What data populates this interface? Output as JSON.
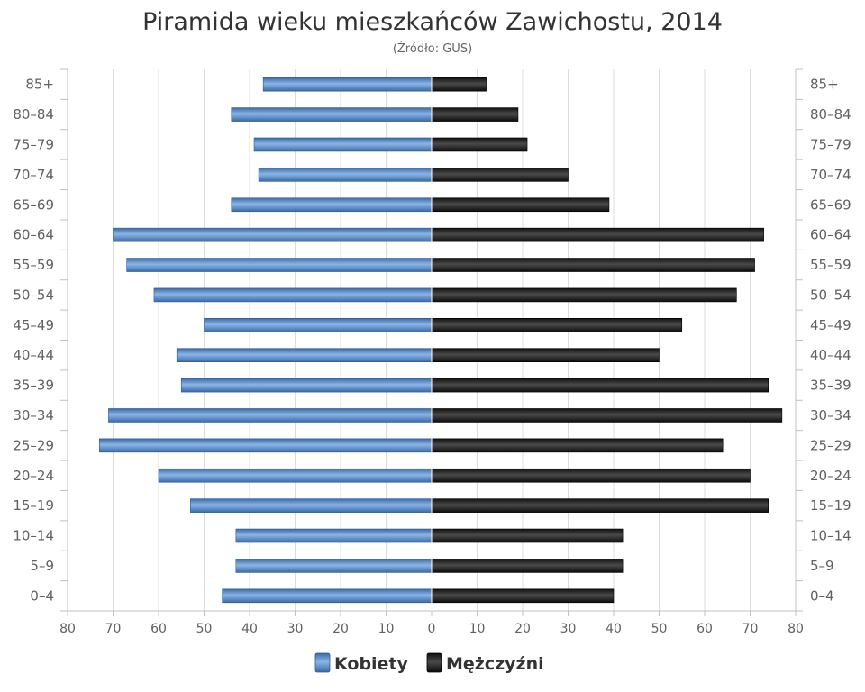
{
  "chart_data": {
    "type": "bar",
    "orientation": "horizontal-pyramid",
    "title": "Piramida wieku mieszkańców Zawichostu, 2014",
    "subtitle": "(Źródło: GUS)",
    "categories": [
      "85+",
      "80–84",
      "75–79",
      "70–74",
      "65–69",
      "60–64",
      "55–59",
      "50–54",
      "45–49",
      "40–44",
      "35–39",
      "30–34",
      "25–29",
      "20–24",
      "15–19",
      "10–14",
      "5–9",
      "0–4"
    ],
    "series": [
      {
        "name": "Kobiety",
        "color": "#4a7fbb",
        "side": "left",
        "values": [
          37,
          44,
          39,
          38,
          44,
          70,
          67,
          61,
          50,
          56,
          55,
          71,
          73,
          60,
          53,
          43,
          43,
          46
        ]
      },
      {
        "name": "Mężczyźni",
        "color": "#202020",
        "side": "right",
        "values": [
          12,
          19,
          21,
          30,
          39,
          73,
          71,
          67,
          55,
          50,
          74,
          77,
          64,
          70,
          74,
          42,
          42,
          40
        ]
      }
    ],
    "xlim": [
      -80,
      80
    ],
    "x_ticks": [
      "80",
      "70",
      "60",
      "50",
      "40",
      "30",
      "20",
      "10",
      "0",
      "10",
      "20",
      "30",
      "40",
      "50",
      "60",
      "70",
      "80"
    ],
    "grid": true,
    "legend": "bottom-center"
  }
}
